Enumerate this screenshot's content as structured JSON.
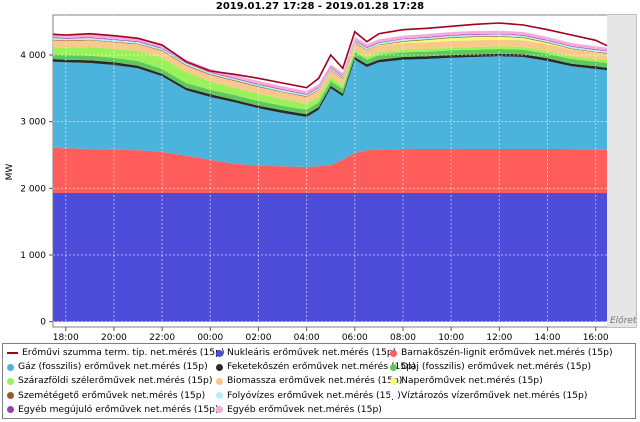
{
  "chart_data": {
    "type": "area",
    "stacked": true,
    "title": "2019.01.27 17:28 - 2019.01.28 17:28",
    "ylabel": "MW",
    "xlabel": "",
    "ylim": [
      -80,
      4600
    ],
    "yticks": [
      0,
      1000,
      2000,
      3000,
      4000
    ],
    "ytick_labels": [
      "0",
      "1 000",
      "2 000",
      "3 000",
      "4 000"
    ],
    "xlim": [
      17.47,
      40.47
    ],
    "xticks": [
      18,
      20,
      22,
      24,
      26,
      28,
      30,
      32,
      34,
      36,
      38,
      40
    ],
    "xtick_labels": [
      "18:00",
      "20:00",
      "22:00",
      "00:00",
      "02:00",
      "04:00",
      "06:00",
      "08:00",
      "10:00",
      "12:00",
      "14:00",
      "16:00"
    ],
    "forecast_label": "Előret",
    "forecast_start": 40.47,
    "grid": true,
    "legend_position": "bottom",
    "total_line": {
      "name": "Erőművi szumma term. tip. net.mérés (15p)",
      "color": "#a0001e",
      "x": [
        17.47,
        18,
        19,
        20,
        21,
        22,
        23,
        24,
        25,
        26,
        27,
        28,
        28.5,
        29,
        29.5,
        30,
        30.5,
        31,
        32,
        33,
        34,
        35,
        36,
        37,
        38,
        39,
        40,
        40.47
      ],
      "y": [
        4310,
        4300,
        4320,
        4290,
        4250,
        4150,
        3900,
        3760,
        3710,
        3650,
        3580,
        3510,
        3650,
        4000,
        3800,
        4350,
        4200,
        4320,
        4380,
        4400,
        4430,
        4460,
        4480,
        4450,
        4380,
        4300,
        4220,
        4140
      ]
    },
    "x": [
      17.47,
      18,
      19,
      20,
      21,
      22,
      23,
      24,
      25,
      26,
      27,
      28,
      28.5,
      29,
      29.5,
      30,
      30.5,
      31,
      32,
      33,
      34,
      35,
      36,
      37,
      38,
      39,
      40,
      40.47
    ],
    "series": [
      {
        "name": "Nukleáris erőművek net.mérés (15p)",
        "color": "#4d4dd9",
        "values": [
          1930,
          1930,
          1930,
          1930,
          1930,
          1930,
          1930,
          1930,
          1930,
          1930,
          1930,
          1930,
          1930,
          1930,
          1930,
          1930,
          1930,
          1930,
          1930,
          1930,
          1930,
          1930,
          1930,
          1930,
          1930,
          1930,
          1930,
          1930
        ]
      },
      {
        "name": "Barnakőszén-lignit erőművek net.mérés (15p)",
        "color": "#ff5c5c",
        "values": [
          680,
          670,
          660,
          650,
          640,
          620,
          560,
          500,
          440,
          410,
          400,
          390,
          400,
          420,
          500,
          600,
          640,
          650,
          660,
          660,
          660,
          660,
          660,
          660,
          660,
          660,
          650,
          650
        ]
      },
      {
        "name": "Gáz (fosszilis) erőművek net.mérés (15p)",
        "color": "#4cb4dc",
        "values": [
          1290,
          1290,
          1290,
          1270,
          1230,
          1130,
          980,
          940,
          920,
          860,
          800,
          750,
          850,
          1150,
          950,
          1400,
          1250,
          1310,
          1340,
          1350,
          1370,
          1380,
          1390,
          1380,
          1320,
          1240,
          1210,
          1190
        ]
      },
      {
        "name": "Feketekőszén erőművek net.mérés (15p)",
        "color": "#2a2a2a",
        "values": [
          40,
          40,
          40,
          40,
          40,
          40,
          40,
          40,
          40,
          40,
          40,
          40,
          40,
          40,
          40,
          40,
          40,
          40,
          40,
          40,
          40,
          40,
          40,
          40,
          40,
          40,
          40,
          40
        ]
      },
      {
        "name": "Olaj (fosszilis) erőművek net.mérés (15p)",
        "color": "#5ec85e",
        "values": [
          70,
          70,
          70,
          70,
          70,
          70,
          70,
          70,
          70,
          70,
          70,
          70,
          70,
          70,
          70,
          70,
          70,
          70,
          70,
          70,
          70,
          70,
          70,
          70,
          70,
          70,
          70,
          70
        ]
      },
      {
        "name": "Szárazföldi szélerőművek net.mérés (15p)",
        "color": "#99f25a",
        "values": [
          110,
          110,
          130,
          130,
          150,
          170,
          160,
          120,
          110,
          110,
          100,
          90,
          80,
          60,
          50,
          40,
          40,
          40,
          40,
          40,
          40,
          40,
          40,
          40,
          40,
          40,
          40,
          40
        ]
      },
      {
        "name": "Biomassza erőművek net.mérés (15p)",
        "color": "#f7c98a",
        "values": [
          100,
          100,
          100,
          100,
          100,
          100,
          100,
          100,
          100,
          100,
          100,
          100,
          100,
          100,
          100,
          100,
          100,
          100,
          100,
          100,
          100,
          100,
          100,
          100,
          100,
          100,
          100,
          100
        ]
      },
      {
        "name": "Naperőművek net.mérés (15p)",
        "color": "#fafa78",
        "values": [
          0,
          0,
          0,
          0,
          0,
          0,
          0,
          0,
          0,
          0,
          0,
          0,
          0,
          0,
          0,
          0,
          0,
          5,
          20,
          35,
          45,
          50,
          45,
          35,
          20,
          8,
          0,
          0
        ]
      },
      {
        "name": "Szemétégető erőművek net.mérés (15p)",
        "color": "#9c5a2a",
        "values": [
          10,
          10,
          10,
          10,
          10,
          10,
          10,
          10,
          10,
          10,
          10,
          10,
          10,
          10,
          10,
          10,
          10,
          10,
          10,
          10,
          10,
          10,
          10,
          10,
          10,
          10,
          10,
          10
        ]
      },
      {
        "name": "Folyóvízes erőművek net.mérés (15p)",
        "color": "#b4f0f5",
        "values": [
          25,
          25,
          25,
          25,
          25,
          25,
          25,
          25,
          25,
          25,
          25,
          25,
          25,
          25,
          25,
          25,
          25,
          25,
          25,
          25,
          25,
          25,
          25,
          25,
          25,
          25,
          25,
          25
        ]
      },
      {
        "name": "Víztározós vízerőművek net.mérés (15p)",
        "color": "#f0faff",
        "values": [
          0,
          0,
          0,
          0,
          0,
          0,
          0,
          0,
          0,
          0,
          0,
          0,
          0,
          0,
          0,
          0,
          0,
          0,
          0,
          0,
          0,
          0,
          0,
          0,
          0,
          0,
          0,
          0
        ]
      },
      {
        "name": "Egyéb megújuló erőművek net.mérés (15p)",
        "color": "#9b3fb0",
        "values": [
          10,
          10,
          10,
          10,
          10,
          10,
          10,
          10,
          10,
          10,
          10,
          10,
          10,
          10,
          10,
          10,
          10,
          10,
          10,
          10,
          10,
          10,
          10,
          10,
          10,
          10,
          10,
          10
        ]
      },
      {
        "name": "Egyéb erőművek net.mérés (15p)",
        "color": "#f7a8dc",
        "values": [
          45,
          45,
          45,
          45,
          45,
          45,
          45,
          45,
          45,
          45,
          45,
          45,
          45,
          45,
          45,
          45,
          45,
          45,
          45,
          45,
          45,
          45,
          45,
          45,
          45,
          45,
          45,
          45
        ]
      }
    ]
  }
}
